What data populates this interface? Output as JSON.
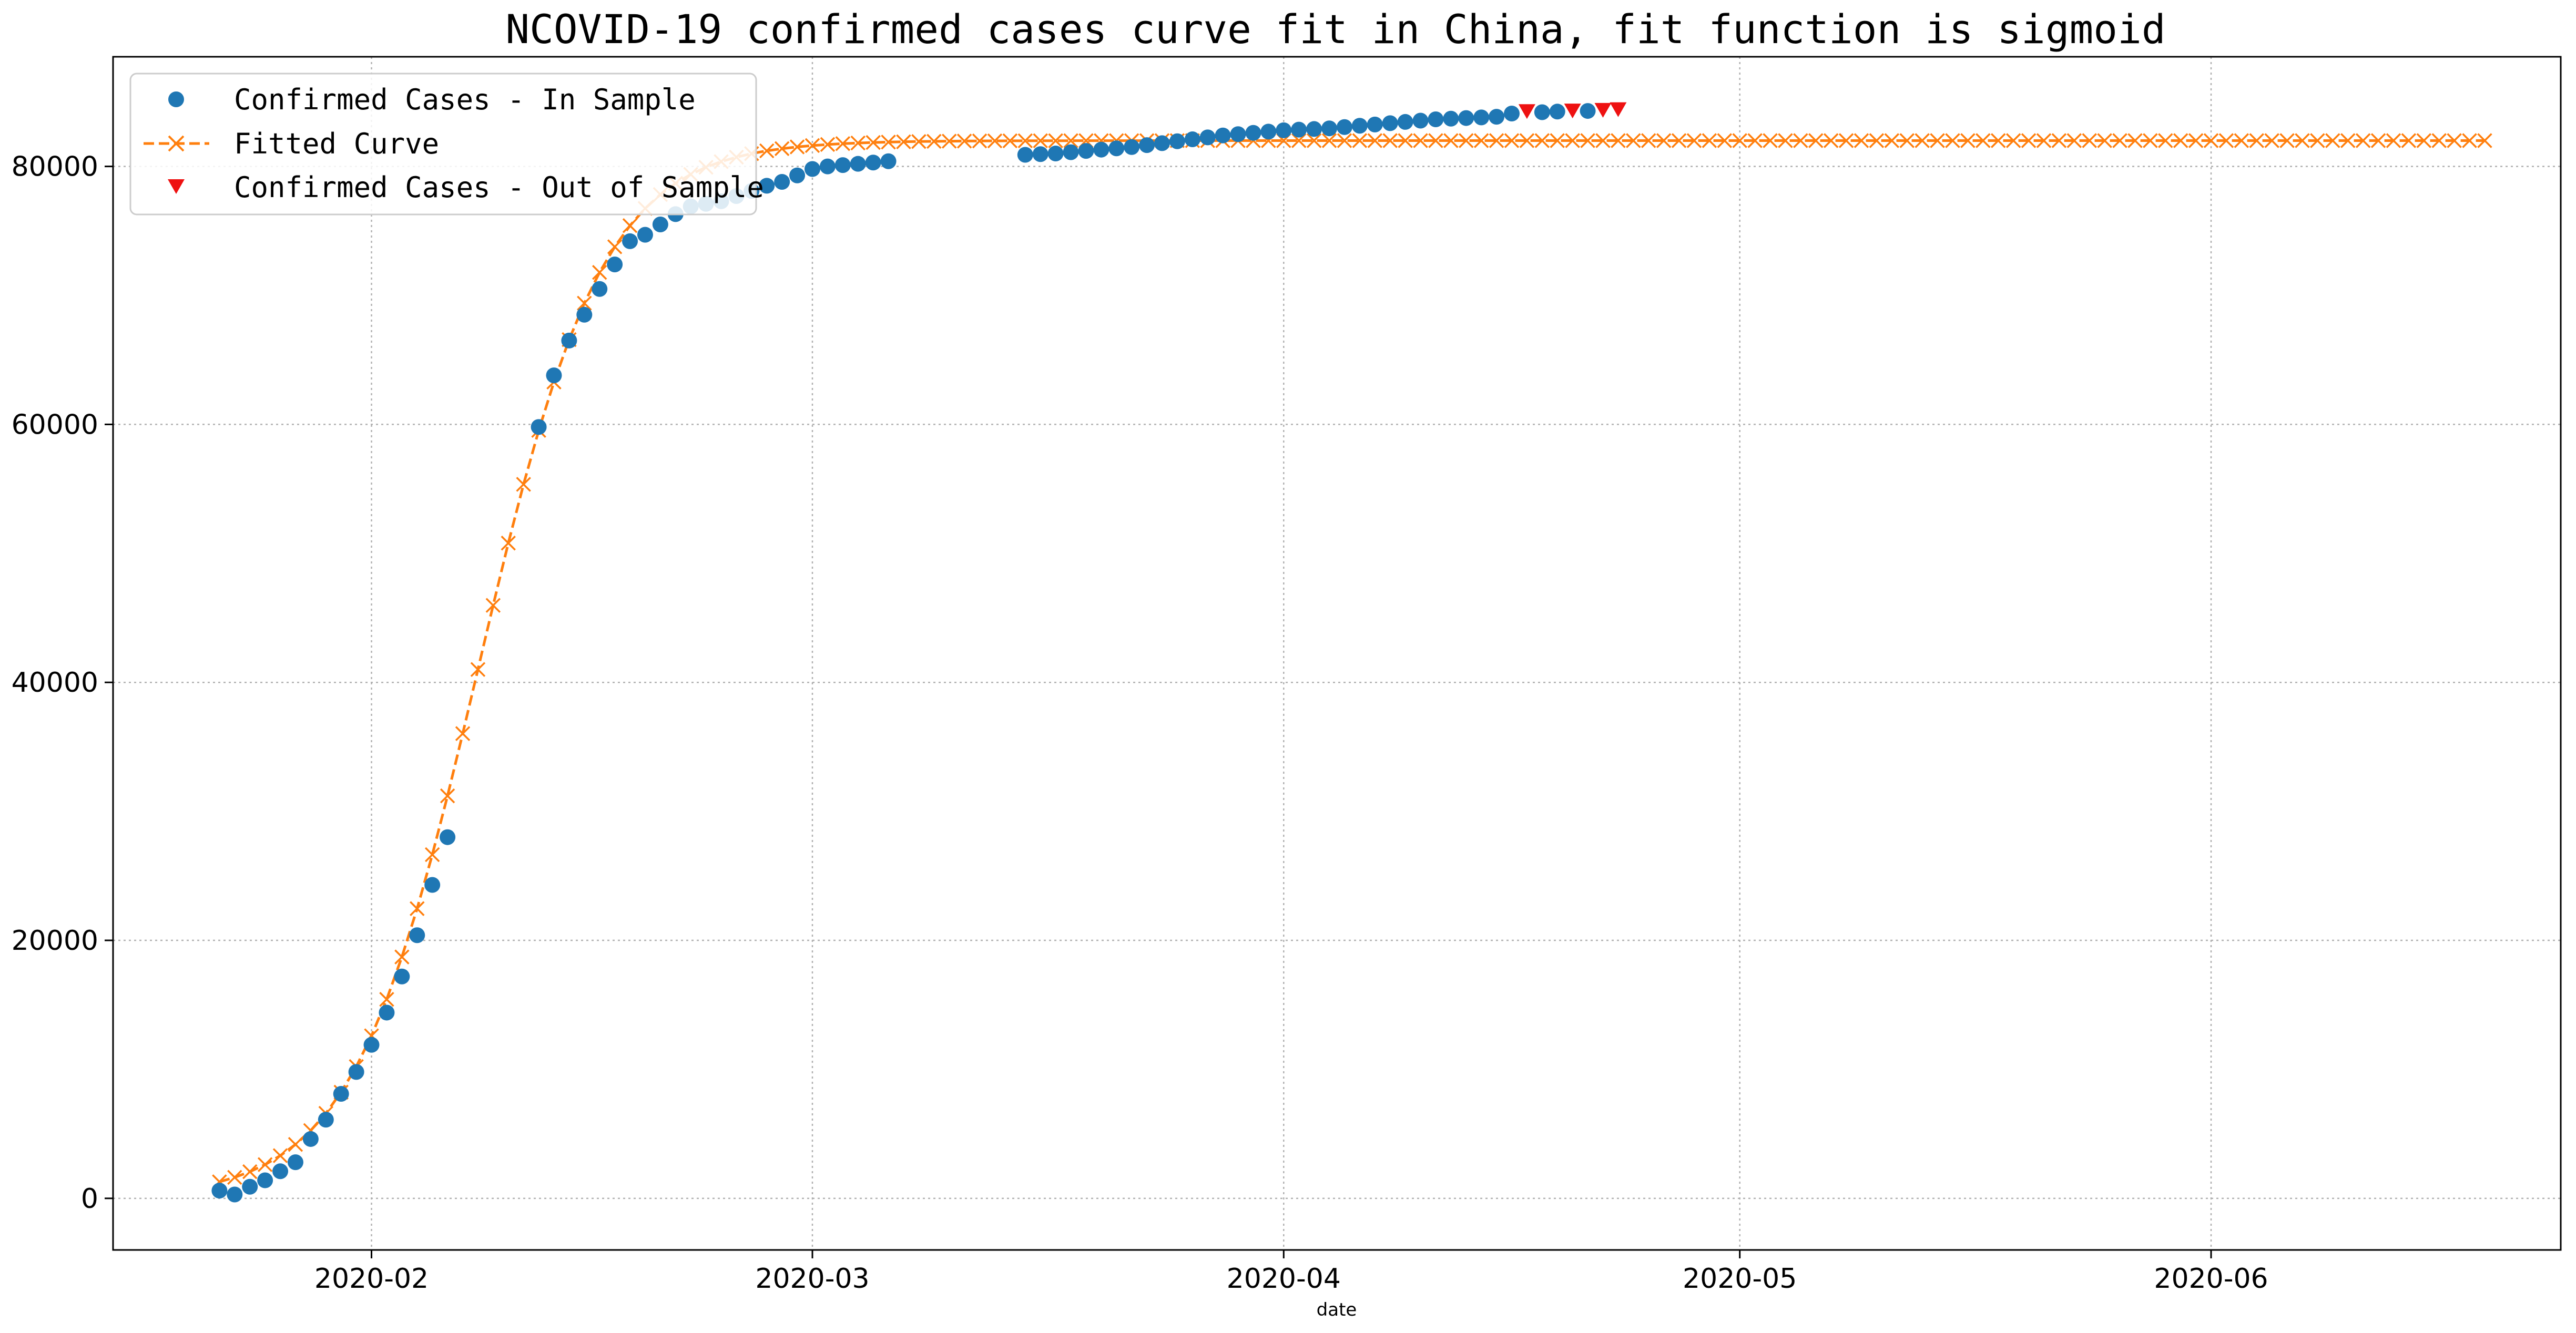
{
  "chart_data": {
    "type": "scatter",
    "title": "NCOVID-19 confirmed cases curve fit in China, fit function is sigmoid",
    "xlabel": "date",
    "ylabel": "",
    "x_range": [
      "2020-01-15",
      "2020-06-24"
    ],
    "y_range": [
      -4000,
      88500
    ],
    "grid": true,
    "legend_position": "top-left",
    "x_ticks": [
      "2020-02-01",
      "2020-03-01",
      "2020-04-01",
      "2020-05-01",
      "2020-06-01"
    ],
    "x_tick_labels": [
      "2020-02",
      "2020-03",
      "2020-04",
      "2020-05",
      "2020-06"
    ],
    "y_ticks": [
      0,
      20000,
      40000,
      60000,
      80000
    ],
    "y_tick_labels": [
      "0",
      "20000",
      "40000",
      "60000",
      "80000"
    ],
    "series": [
      {
        "name": "Confirmed Cases - In Sample",
        "marker": "circle",
        "color": "#1f77b4",
        "points": [
          [
            "2020-01-22",
            600
          ],
          [
            "2020-01-23",
            300
          ],
          [
            "2020-01-24",
            900
          ],
          [
            "2020-01-25",
            1400
          ],
          [
            "2020-01-26",
            2100
          ],
          [
            "2020-01-27",
            2800
          ],
          [
            "2020-01-28",
            4600
          ],
          [
            "2020-01-29",
            6100
          ],
          [
            "2020-01-30",
            8100
          ],
          [
            "2020-01-31",
            9800
          ],
          [
            "2020-02-01",
            11900
          ],
          [
            "2020-02-02",
            14400
          ],
          [
            "2020-02-03",
            17200
          ],
          [
            "2020-02-04",
            20400
          ],
          [
            "2020-02-05",
            24300
          ],
          [
            "2020-02-06",
            28000
          ],
          [
            "2020-02-12",
            59800
          ],
          [
            "2020-02-13",
            63800
          ],
          [
            "2020-02-14",
            66500
          ],
          [
            "2020-02-15",
            68500
          ],
          [
            "2020-02-16",
            70500
          ],
          [
            "2020-02-17",
            72400
          ],
          [
            "2020-02-18",
            74200
          ],
          [
            "2020-02-19",
            74700
          ],
          [
            "2020-02-20",
            75500
          ],
          [
            "2020-02-21",
            76300
          ],
          [
            "2020-02-22",
            76900
          ],
          [
            "2020-02-23",
            77100
          ],
          [
            "2020-02-24",
            77300
          ],
          [
            "2020-02-25",
            77700
          ],
          [
            "2020-02-26",
            78100
          ],
          [
            "2020-02-27",
            78500
          ],
          [
            "2020-02-28",
            78800
          ],
          [
            "2020-02-29",
            79300
          ],
          [
            "2020-03-01",
            79800
          ],
          [
            "2020-03-02",
            80000
          ],
          [
            "2020-03-03",
            80100
          ],
          [
            "2020-03-04",
            80200
          ],
          [
            "2020-03-05",
            80300
          ],
          [
            "2020-03-06",
            80400
          ],
          [
            "2020-03-15",
            80900
          ],
          [
            "2020-03-16",
            80950
          ],
          [
            "2020-03-17",
            81000
          ],
          [
            "2020-03-18",
            81100
          ],
          [
            "2020-03-19",
            81200
          ],
          [
            "2020-03-20",
            81300
          ],
          [
            "2020-03-21",
            81400
          ],
          [
            "2020-03-22",
            81500
          ],
          [
            "2020-03-23",
            81650
          ],
          [
            "2020-03-24",
            81800
          ],
          [
            "2020-03-25",
            81950
          ],
          [
            "2020-03-26",
            82100
          ],
          [
            "2020-03-27",
            82250
          ],
          [
            "2020-03-28",
            82400
          ],
          [
            "2020-03-29",
            82500
          ],
          [
            "2020-03-30",
            82600
          ],
          [
            "2020-03-31",
            82700
          ],
          [
            "2020-04-01",
            82800
          ],
          [
            "2020-04-02",
            82850
          ],
          [
            "2020-04-03",
            82900
          ],
          [
            "2020-04-04",
            82950
          ],
          [
            "2020-04-05",
            83050
          ],
          [
            "2020-04-06",
            83150
          ],
          [
            "2020-04-07",
            83250
          ],
          [
            "2020-04-08",
            83350
          ],
          [
            "2020-04-09",
            83450
          ],
          [
            "2020-04-10",
            83550
          ],
          [
            "2020-04-11",
            83650
          ],
          [
            "2020-04-12",
            83700
          ],
          [
            "2020-04-13",
            83750
          ],
          [
            "2020-04-14",
            83800
          ],
          [
            "2020-04-15",
            83850
          ],
          [
            "2020-04-16",
            84100
          ],
          [
            "2020-04-18",
            84200
          ],
          [
            "2020-04-19",
            84250
          ],
          [
            "2020-04-21",
            84300
          ]
        ]
      },
      {
        "name": "Fitted Curve",
        "marker": "x",
        "line_style": "dashed",
        "color": "#ff7f0e",
        "function": "sigmoid",
        "params": {
          "K": 82000,
          "k": 0.2437,
          "midpoint": "2020-02-08"
        },
        "x_start": "2020-01-22",
        "x_end": "2020-06-19"
      },
      {
        "name": "Confirmed Cases - Out of Sample",
        "marker": "triangle-down",
        "color": "#ee1111",
        "points": [
          [
            "2020-04-17",
            84250
          ],
          [
            "2020-04-20",
            84300
          ],
          [
            "2020-04-22",
            84350
          ],
          [
            "2020-04-23",
            84400
          ]
        ]
      }
    ]
  }
}
